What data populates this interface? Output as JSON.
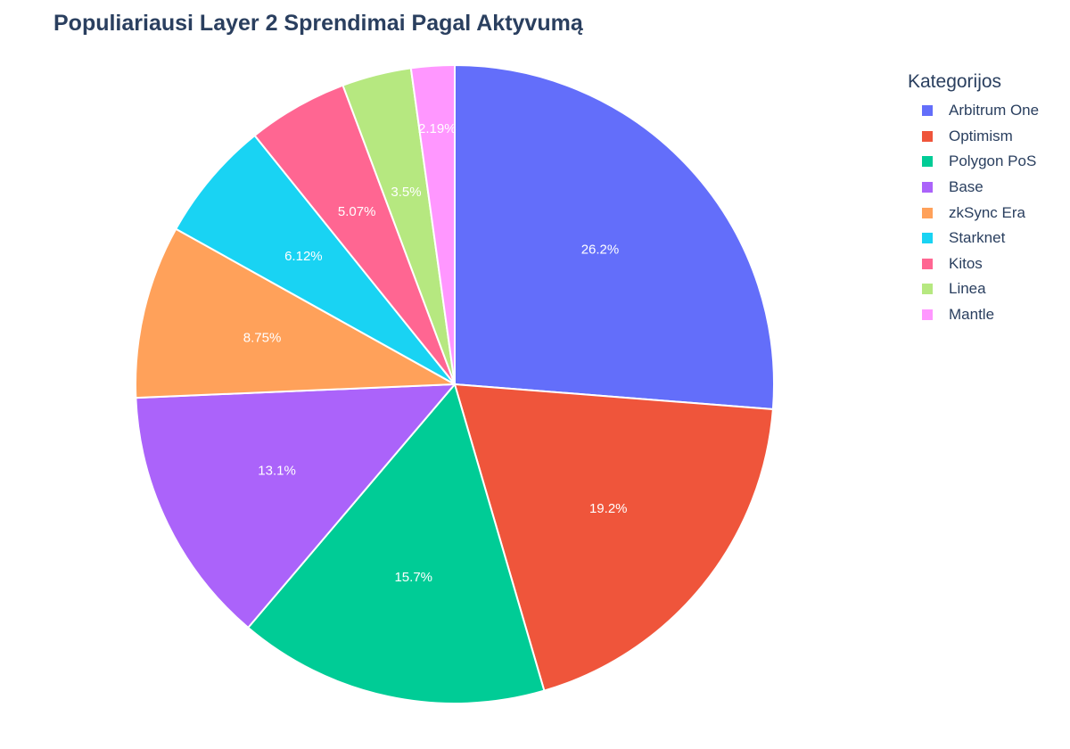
{
  "chart_data": {
    "type": "pie",
    "title": "Populiariausi Layer 2 Sprendimai Pagal Aktyvumą",
    "legend_title": "Kategorijos",
    "legend_position": "right",
    "direction": "clockwise",
    "start": "top",
    "slices": [
      {
        "label": "Arbitrum One",
        "percent": 26.2,
        "percent_label": "26.2%",
        "color": "#636efa"
      },
      {
        "label": "Optimism",
        "percent": 19.2,
        "percent_label": "19.2%",
        "color": "#ef553b"
      },
      {
        "label": "Polygon PoS",
        "percent": 15.7,
        "percent_label": "15.7%",
        "color": "#00cc96"
      },
      {
        "label": "Base",
        "percent": 13.1,
        "percent_label": "13.1%",
        "color": "#ab63fa"
      },
      {
        "label": "zkSync Era",
        "percent": 8.75,
        "percent_label": "8.75%",
        "color": "#ffa15a"
      },
      {
        "label": "Starknet",
        "percent": 6.12,
        "percent_label": "6.12%",
        "color": "#19d3f3"
      },
      {
        "label": "Kitos",
        "percent": 5.07,
        "percent_label": "5.07%",
        "color": "#ff6692"
      },
      {
        "label": "Linea",
        "percent": 3.5,
        "percent_label": "3.5%",
        "color": "#b6e880"
      },
      {
        "label": "Mantle",
        "percent": 2.19,
        "percent_label": "2.19%",
        "color": "#ff97ff"
      }
    ]
  }
}
